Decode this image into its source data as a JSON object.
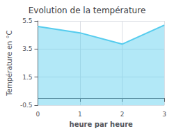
{
  "chart_data": {
    "type": "area",
    "title": "Evolution de la température",
    "xlabel": "heure par heure",
    "ylabel": "Température en °C",
    "x": [
      0,
      1,
      2,
      3
    ],
    "values": [
      5.1,
      4.65,
      3.85,
      5.2
    ],
    "xlim": [
      0,
      3
    ],
    "ylim": [
      -0.5,
      5.5
    ],
    "xticks": [
      0,
      1,
      2,
      3
    ],
    "yticks": [
      -0.5,
      1.5,
      3.5,
      5.5
    ],
    "color": "#55ccee",
    "grid": true
  }
}
